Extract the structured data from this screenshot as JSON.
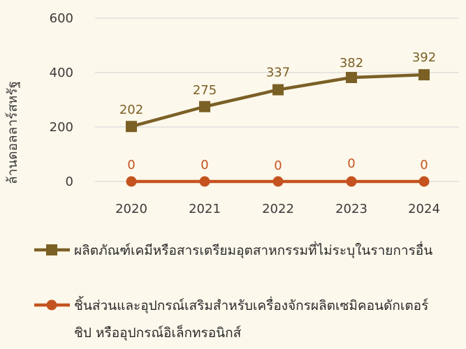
{
  "chart_data": {
    "type": "line",
    "ylabel": "ล้านดอลลาร์สหรัฐ",
    "xlabel": "",
    "categories": [
      "2020",
      "2021",
      "2022",
      "2023",
      "2024"
    ],
    "ylim": [
      0,
      600
    ],
    "yticks": [
      "0",
      "200",
      "400",
      "600"
    ],
    "grid": true,
    "legend_position": "bottom",
    "series": [
      {
        "name": "ผลิตภัณฑ์เคมีหรือสารเตรียมอุตสาหกรรมที่ไม่ระบุในรายการอื่น",
        "values": [
          202,
          275,
          337,
          382,
          392
        ],
        "labels": [
          "202",
          "275",
          "337",
          "382",
          "392"
        ],
        "color": "#7b6026",
        "marker": "square"
      },
      {
        "name": "ชิ้นส่วนและอุปกรณ์เสริมสำหรับเครื่องจักรผลิตเซมิคอนดักเตอร์ ชิป หรืออุปกรณ์อิเล็กทรอนิกส์",
        "name_lines": [
          "ชิ้นส่วนและอุปกรณ์เสริมสำหรับเครื่องจักรผลิตเซมิคอนดักเตอร์",
          "ชิป หรืออุปกรณ์อิเล็กทรอนิกส์"
        ],
        "values": [
          0,
          0,
          0,
          0,
          0
        ],
        "labels": [
          "0",
          "0",
          "0",
          "0",
          "0"
        ],
        "color": "#c4531f",
        "marker": "circle"
      }
    ]
  }
}
